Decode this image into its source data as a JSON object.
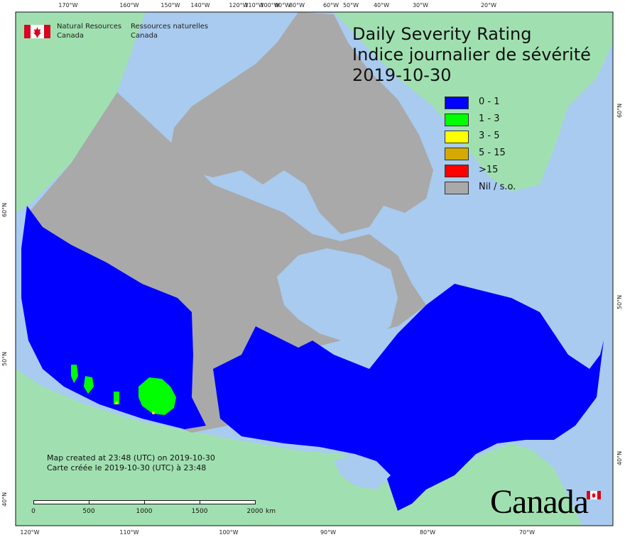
{
  "header": {
    "agency_en_line1": "Natural Resources",
    "agency_en_line2": "Canada",
    "agency_fr_line1": "Ressources naturelles",
    "agency_fr_line2": "Canada",
    "flag_icon": "canada-flag-icon"
  },
  "title": {
    "line1": "Daily Severity Rating",
    "line2": "Indice journalier de sévérité",
    "date": "2019-10-30"
  },
  "legend": {
    "items": [
      {
        "label": "0 - 1",
        "color": "#0000ff"
      },
      {
        "label": "1 - 3",
        "color": "#00ff00"
      },
      {
        "label": "3 - 5",
        "color": "#ffff00"
      },
      {
        "label": "5 - 15",
        "color": "#d4aa00"
      },
      {
        "label": ">15",
        "color": "#ff0000"
      },
      {
        "label": "Nil / s.o.",
        "color": "#a9a9a9"
      }
    ]
  },
  "credits": {
    "en": "Map created at 23:48 (UTC) on 2019-10-30",
    "fr": "Carte créée le 2019-10-30 (UTC) à 23:48"
  },
  "scale": {
    "labels": [
      "0",
      "500",
      "1000",
      "1500",
      "2000"
    ],
    "unit": "km"
  },
  "axes": {
    "top": [
      "170°W",
      "160°W",
      "150°W",
      "140°W",
      "120°W",
      "110°W",
      "100°W",
      "90°W",
      "80°W",
      "60°W",
      "50°W",
      "40°W",
      "30°W",
      "20°W"
    ],
    "bottom": [
      "120°W",
      "110°W",
      "100°W",
      "90°W",
      "80°W",
      "70°W"
    ],
    "left": [
      "60°N",
      "50°N",
      "40°N"
    ],
    "right": [
      "60°N",
      "50°N",
      "40°N"
    ]
  },
  "colors": {
    "ocean": "#a8cbef",
    "land_foreign": "#a0e0b0",
    "nil": "#a9a9a9",
    "low": "#0000ff",
    "moderate": "#00ff00",
    "high": "#ffff00",
    "very_high": "#d4aa00"
  },
  "wordmark": "Canada"
}
